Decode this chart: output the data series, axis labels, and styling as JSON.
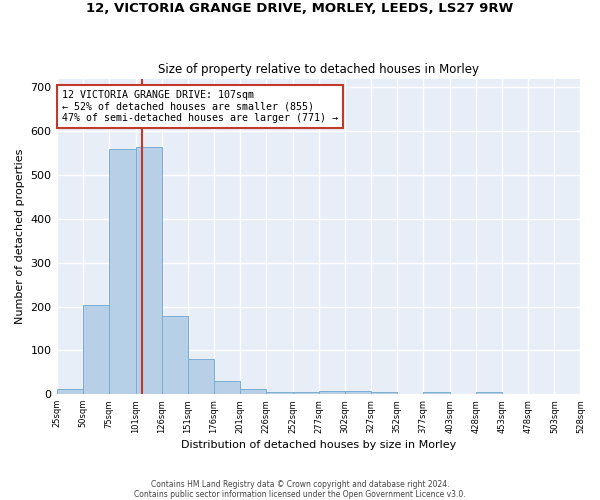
{
  "title": "12, VICTORIA GRANGE DRIVE, MORLEY, LEEDS, LS27 9RW",
  "subtitle": "Size of property relative to detached houses in Morley",
  "xlabel": "Distribution of detached houses by size in Morley",
  "ylabel": "Number of detached properties",
  "bar_color": "#b8cfe8",
  "bar_edge_color": "#7aaed4",
  "background_color": "#e8eef8",
  "grid_color": "#ffffff",
  "vline_x": 107,
  "vline_color": "#c0392b",
  "annotation_text": "12 VICTORIA GRANGE DRIVE: 107sqm\n← 52% of detached houses are smaller (855)\n47% of semi-detached houses are larger (771) →",
  "annotation_box_color": "#ffffff",
  "annotation_box_edge": "#c0392b",
  "bin_edges": [
    25,
    50,
    75,
    101,
    126,
    151,
    176,
    201,
    226,
    252,
    277,
    302,
    327,
    352,
    377,
    403,
    428,
    453,
    478,
    503,
    528
  ],
  "bar_heights": [
    12,
    203,
    560,
    565,
    178,
    80,
    30,
    12,
    5,
    5,
    8,
    7,
    6,
    0,
    5,
    0,
    6,
    0,
    0,
    0
  ],
  "ylim": [
    0,
    720
  ],
  "yticks": [
    0,
    100,
    200,
    300,
    400,
    500,
    600,
    700
  ],
  "footer_text": "Contains HM Land Registry data © Crown copyright and database right 2024.\nContains public sector information licensed under the Open Government Licence v3.0."
}
